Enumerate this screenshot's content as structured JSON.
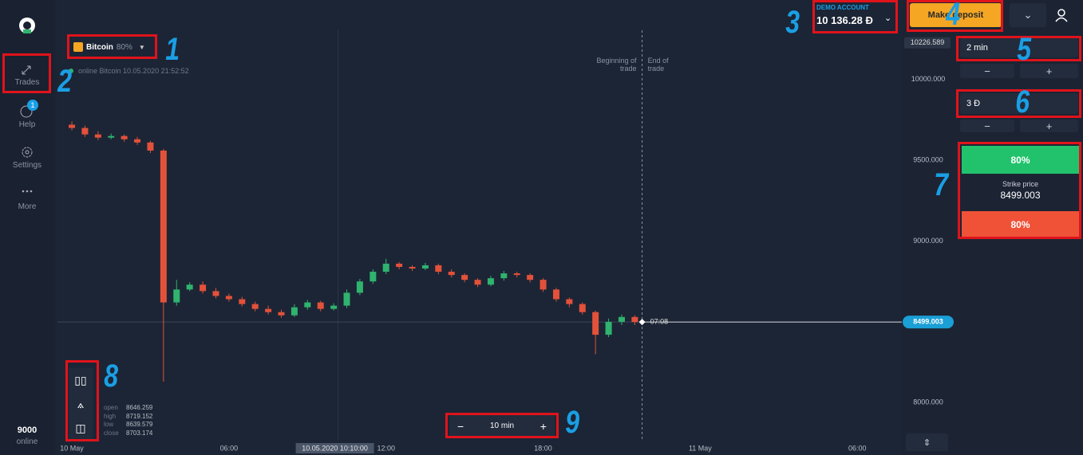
{
  "sidebar": {
    "items": [
      "Trades",
      "Help",
      "Settings",
      "More"
    ],
    "help_badge": "1",
    "online_count": "9000",
    "online_label": "online"
  },
  "asset": {
    "name": "Bitcoin",
    "payout": "80%",
    "status": "online Bitcoin 10.05.2020 21:52:52"
  },
  "account": {
    "label": "DEMO ACCOUNT",
    "balance": "10 136.28 Đ",
    "deposit": "Make deposit"
  },
  "trade_panel": {
    "time": "2 min",
    "amount": "3 Đ",
    "minus": "−",
    "plus": "+",
    "up_payout": "80%",
    "strike_label": "Strike price",
    "strike_value": "8499.003",
    "down_payout": "80%"
  },
  "ohlc": {
    "labels": [
      "open",
      "high",
      "low",
      "close"
    ],
    "values": [
      "8646.259",
      "8719.152",
      "8639.579",
      "8703.174"
    ]
  },
  "zoom": {
    "minus": "−",
    "label": "10 min",
    "plus": "+"
  },
  "annotations": [
    "1",
    "2",
    "3",
    "4",
    "5",
    "6",
    "7",
    "8",
    "9"
  ],
  "chart_data": {
    "type": "candlestick",
    "x": [
      0,
      0.5,
      1,
      1.5,
      2,
      2.5,
      3,
      3.5,
      4,
      4.5,
      5,
      5.5,
      6,
      6.5,
      7,
      7.5,
      8,
      8.5,
      9,
      9.5,
      10,
      10.5,
      11,
      11.5,
      12,
      12.5,
      13,
      13.5,
      14,
      14.5,
      15,
      15.5,
      16,
      16.5,
      17,
      17.5,
      18,
      18.5,
      19,
      19.5,
      20,
      20.5,
      21,
      21.5
    ],
    "open": [
      9720,
      9700,
      9660,
      9640,
      9650,
      9630,
      9610,
      9560,
      8620,
      8700,
      8730,
      8690,
      8660,
      8640,
      8610,
      8580,
      8560,
      8540,
      8590,
      8620,
      8580,
      8600,
      8680,
      8750,
      8810,
      8860,
      8840,
      8830,
      8850,
      8810,
      8790,
      8760,
      8730,
      8770,
      8800,
      8790,
      8760,
      8700,
      8640,
      8610,
      8560,
      8420,
      8500,
      8530
    ],
    "high": [
      9740,
      9715,
      9680,
      9665,
      9660,
      9645,
      9620,
      9570,
      8760,
      8745,
      8750,
      8710,
      8675,
      8655,
      8625,
      8600,
      8575,
      8610,
      8635,
      8630,
      8615,
      8700,
      8765,
      8825,
      8890,
      8870,
      8850,
      8865,
      8860,
      8825,
      8800,
      8770,
      8785,
      8815,
      8810,
      8800,
      8770,
      8710,
      8650,
      8620,
      8570,
      8520,
      8545,
      8540
    ],
    "low": [
      9685,
      9645,
      9625,
      9630,
      9615,
      9595,
      9545,
      8130,
      8600,
      8690,
      8675,
      8645,
      8625,
      8595,
      8565,
      8545,
      8525,
      8530,
      8575,
      8565,
      8570,
      8585,
      8665,
      8735,
      8795,
      8825,
      8815,
      8820,
      8795,
      8775,
      8745,
      8715,
      8720,
      8755,
      8775,
      8745,
      8685,
      8625,
      8590,
      8545,
      8300,
      8405,
      8480,
      8480
    ],
    "close": [
      9700,
      9660,
      9640,
      9650,
      9630,
      9610,
      9560,
      8620,
      8700,
      8730,
      8690,
      8660,
      8640,
      8610,
      8580,
      8560,
      8540,
      8590,
      8620,
      8580,
      8600,
      8680,
      8750,
      8810,
      8860,
      8840,
      8830,
      8850,
      8810,
      8790,
      8760,
      8730,
      8770,
      8800,
      8790,
      8760,
      8700,
      8640,
      8610,
      8560,
      8420,
      8500,
      8530,
      8499
    ],
    "up_color": "#2fb36e",
    "down_color": "#e3513a",
    "xlim": [
      -0.55,
      31.7
    ],
    "xticks": [
      {
        "value": 0,
        "label": "10 May"
      },
      {
        "value": 6,
        "label": "06:00"
      },
      {
        "value": 12,
        "label": "12:00"
      },
      {
        "value": 18,
        "label": "18:00"
      },
      {
        "value": 24,
        "label": "11 May"
      },
      {
        "value": 30,
        "label": "06:00"
      }
    ],
    "ylim": [
      7730,
      10270
    ],
    "yticks": [
      {
        "value": 8000,
        "label": "8000.000"
      },
      {
        "value": 9000,
        "label": "9000.000"
      },
      {
        "value": 9500,
        "label": "9500.000"
      },
      {
        "value": 10000,
        "label": "10000.000"
      }
    ],
    "grid": false,
    "top_price": 10226.589,
    "current_price": 8499.003,
    "timer": "07:08",
    "crosshair": {
      "x": 10.1667,
      "label": "10.05.2020 10:10:00"
    },
    "trade_line": {
      "x": 21.78,
      "start_label": "Beginning of trade",
      "end_label": "End of trade"
    }
  }
}
